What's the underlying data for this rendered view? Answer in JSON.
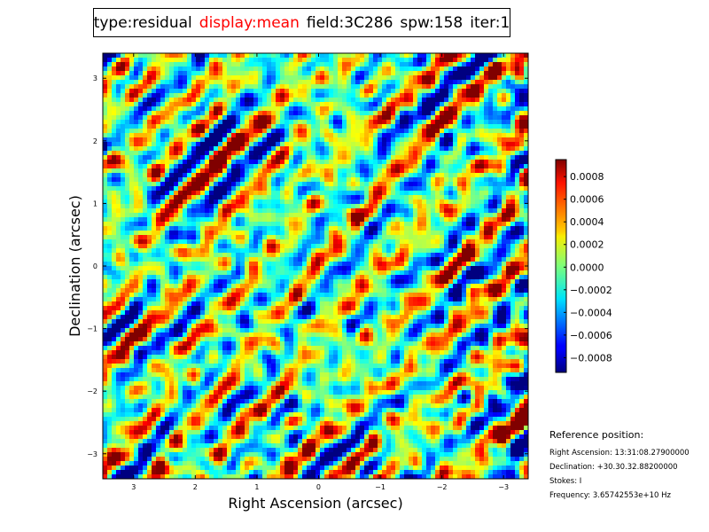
{
  "header": {
    "type": "type:residual",
    "display": "display:mean",
    "field": "field:3C286",
    "spw": "spw:158",
    "iter": "iter:1",
    "display_color": "#ff0000"
  },
  "reference": {
    "title": "Reference position:",
    "ra": "Right Ascension: 13:31:08.27900000",
    "dec": "Declination: +30.30.32.88200000",
    "stokes": "Stokes: I",
    "frequency": "Frequency: 3.65742553e+10 Hz"
  },
  "chart_data": {
    "type": "heatmap",
    "xlabel": "Right Ascension (arcsec)",
    "ylabel": "Declination (arcsec)",
    "xlim": [
      3.5,
      -3.4
    ],
    "ylim": [
      -3.4,
      3.4
    ],
    "xticks": [
      3,
      2,
      1,
      0,
      -1,
      -2,
      -3
    ],
    "xtick_labels": [
      "3",
      "2",
      "1",
      "0",
      "−1",
      "−2",
      "−3"
    ],
    "yticks": [
      3,
      2,
      1,
      0,
      -1,
      -2,
      -3
    ],
    "ytick_labels": [
      "3",
      "2",
      "1",
      "0",
      "−1",
      "−2",
      "−3"
    ],
    "colormap": "jet",
    "colorbar": {
      "vmin": -0.00093,
      "vmax": 0.00095,
      "ticks": [
        0.0008,
        0.0006,
        0.0004,
        0.0002,
        0.0,
        -0.0002,
        -0.0004,
        -0.0006,
        -0.0008
      ],
      "tick_labels": [
        "0.0008",
        "0.0006",
        "0.0004",
        "0.0002",
        "0.0000",
        "−0.0002",
        "−0.0004",
        "−0.0006",
        "−0.0008"
      ]
    }
  }
}
